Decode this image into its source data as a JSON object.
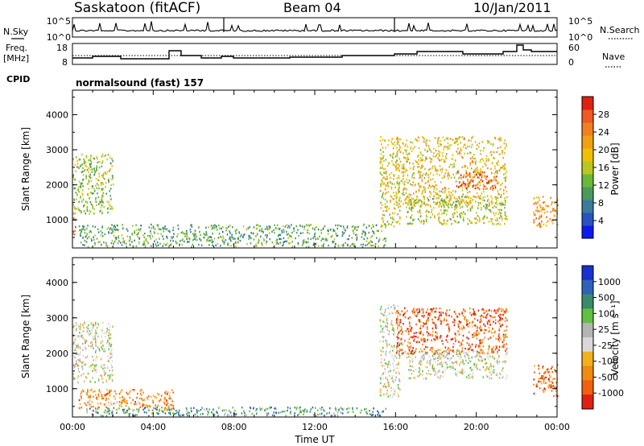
{
  "header": {
    "site": "Saskatoon (fitACF)",
    "beam": "Beam 04",
    "date": "10/Jan/2011"
  },
  "meta_panel_1": {
    "left_label": "N.Sky",
    "left_ticks": [
      "10^5",
      "10^0"
    ],
    "right_ticks": [
      "10^5",
      "10^0"
    ],
    "right_label": "N.Search"
  },
  "meta_panel_2": {
    "left_label_top": "Freq.",
    "left_label_bottom": "[MHz]",
    "left_ticks": [
      "18",
      "8"
    ],
    "right_ticks": [
      "60",
      "0"
    ],
    "right_label": "Nave"
  },
  "cpid": {
    "label": "CPID",
    "program": "normalsound (fast) 157"
  },
  "chart_data": [
    {
      "type": "heatmap",
      "ylabel": "Slant Range [km]",
      "xlabel": "",
      "yticks": [
        "1000",
        "2000",
        "3000",
        "4000"
      ],
      "ylim": [
        200,
        4700
      ],
      "xlim": [
        0,
        24
      ],
      "xticks": [],
      "colorbar": {
        "label": "Power [dB]",
        "ticks": [
          "4",
          "8",
          "12",
          "16",
          "20",
          "24",
          "28"
        ],
        "range": [
          0,
          32
        ],
        "colors": [
          "#1018f0",
          "#2a52c0",
          "#3a7a9a",
          "#4a9a5c",
          "#6ab83a",
          "#b8c820",
          "#f0c000",
          "#f0a010",
          "#f08020",
          "#f05a20",
          "#e02010"
        ]
      },
      "regions": [
        {
          "t0": 0.0,
          "t1": 2.0,
          "r0": 1200,
          "r1": 2900,
          "level": 0.45
        },
        {
          "t0": 0.0,
          "t1": 0.2,
          "r0": 600,
          "r1": 1100,
          "level": 0.9
        },
        {
          "t0": 0.3,
          "t1": 15.5,
          "r0": 250,
          "r1": 900,
          "level": 0.35
        },
        {
          "t0": 15.2,
          "t1": 16.2,
          "r0": 800,
          "r1": 3400,
          "level": 0.55
        },
        {
          "t0": 16.0,
          "t1": 21.5,
          "r0": 1400,
          "r1": 3400,
          "level": 0.6
        },
        {
          "t0": 19.0,
          "t1": 21.0,
          "r0": 1900,
          "r1": 2400,
          "level": 0.85
        },
        {
          "t0": 16.5,
          "t1": 21.5,
          "r0": 900,
          "r1": 1700,
          "level": 0.5
        },
        {
          "t0": 22.8,
          "t1": 24.0,
          "r0": 800,
          "r1": 1700,
          "level": 0.7
        }
      ]
    },
    {
      "type": "heatmap",
      "ylabel": "Slant Range [km]",
      "xlabel": "Time UT",
      "yticks": [
        "1000",
        "2000",
        "3000",
        "4000"
      ],
      "ylim": [
        200,
        4700
      ],
      "xlim": [
        0,
        24
      ],
      "xticks": [
        "00:00",
        "04:00",
        "08:00",
        "12:00",
        "16:00",
        "20:00",
        "00:00"
      ],
      "colorbar": {
        "label": "Velocity [m s⁻¹]",
        "ticks": [
          "1000",
          "500",
          "100",
          "25",
          "-25",
          "-100",
          "-500",
          "-1000"
        ],
        "range": [
          -1000,
          1000
        ],
        "colors": [
          "#1830d0",
          "#2e62b8",
          "#3c8a6a",
          "#60c040",
          "#b4b4b4",
          "#d8d8d8",
          "#f0b020",
          "#f08a10",
          "#f06010",
          "#e02010"
        ]
      },
      "regions": [
        {
          "t0": 0.0,
          "t1": 2.0,
          "r0": 1200,
          "r1": 2900,
          "level": 0.5
        },
        {
          "t0": 0.3,
          "t1": 5.0,
          "r0": 400,
          "r1": 1000,
          "level": 0.75
        },
        {
          "t0": 0.5,
          "t1": 15.5,
          "r0": 250,
          "r1": 500,
          "level": 0.3
        },
        {
          "t0": 15.2,
          "t1": 16.2,
          "r0": 800,
          "r1": 3400,
          "level": 0.5
        },
        {
          "t0": 16.0,
          "t1": 21.5,
          "r0": 2000,
          "r1": 3300,
          "level": 0.85
        },
        {
          "t0": 16.5,
          "t1": 21.5,
          "r0": 1300,
          "r1": 2100,
          "level": 0.5
        },
        {
          "t0": 22.8,
          "t1": 24.0,
          "r0": 800,
          "r1": 1700,
          "level": 0.8
        }
      ]
    }
  ]
}
